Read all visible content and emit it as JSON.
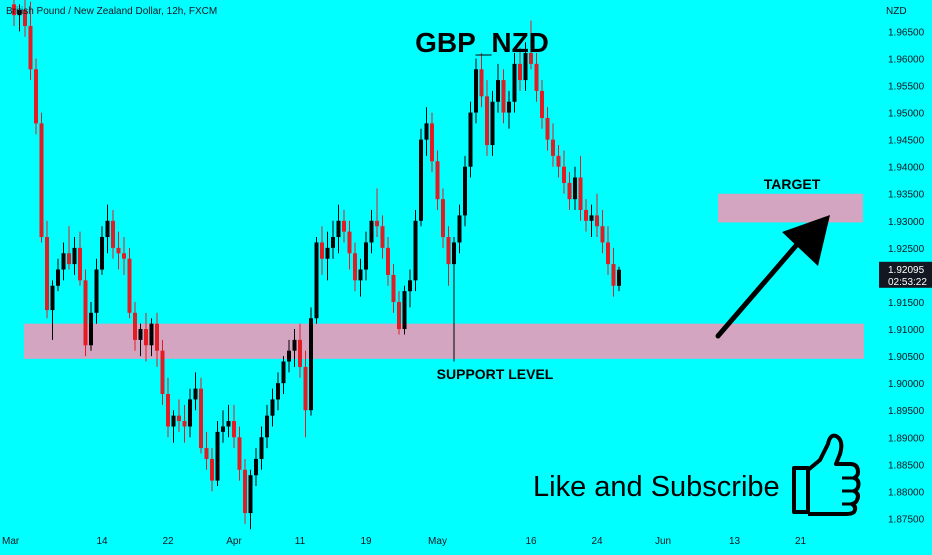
{
  "header": {
    "symbol_description": "British Pound / New Zealand Dollar, 12h, FXCM",
    "title": "GBP_NZD"
  },
  "price_scale": {
    "currency": "NZD",
    "ticks": [
      "1.96500",
      "1.96000",
      "1.95500",
      "1.95000",
      "1.94500",
      "1.94000",
      "1.93500",
      "1.93000",
      "1.92500",
      "1.92000",
      "1.91500",
      "1.91000",
      "1.90500",
      "1.90000",
      "1.89500",
      "1.89000",
      "1.88500",
      "1.88000",
      "1.87500"
    ],
    "last_price": "1.92095",
    "countdown": "02:53:22",
    "last_price_color": "#131722"
  },
  "time_scale": {
    "ticks": [
      {
        "label": "Mar",
        "candle": 0
      },
      {
        "label": "14",
        "candle": 16
      },
      {
        "label": "22",
        "candle": 28
      },
      {
        "label": "Apr",
        "candle": 40
      },
      {
        "label": "11",
        "candle": 52
      },
      {
        "label": "19",
        "candle": 64
      },
      {
        "label": "May",
        "candle": 77
      },
      {
        "label": "16",
        "candle": 94
      },
      {
        "label": "24",
        "candle": 106
      },
      {
        "label": "Jun",
        "candle": 118
      },
      {
        "label": "13",
        "candle": 131
      },
      {
        "label": "21",
        "candle": 143
      }
    ]
  },
  "annotations": {
    "target_label": "TARGET",
    "support_label": "SUPPORT LEVEL",
    "cta_text": "Like and Subscribe",
    "zone_color": "#d4a5c0",
    "arrow_color": "#000000",
    "cta_icon": "thumbs-up-icon"
  },
  "chart_data": {
    "type": "candlestick",
    "title": "GBP_NZD",
    "symbol": "British Pound / New Zealand Dollar, 12h, FXCM",
    "timeframe": "12h",
    "ylim": [
      1.8725,
      1.9708
    ],
    "y_unit": "NZD",
    "up_color": "#000000",
    "down_color": "#e31b23",
    "support_zone": [
      1.9045,
      1.911
    ],
    "target_zone": [
      1.9297,
      1.935
    ],
    "candles": [
      {
        "o": 1.97,
        "h": 1.9712,
        "l": 1.966,
        "c": 1.968
      },
      {
        "o": 1.968,
        "h": 1.97,
        "l": 1.965,
        "c": 1.969
      },
      {
        "o": 1.969,
        "h": 1.971,
        "l": 1.964,
        "c": 1.966
      },
      {
        "o": 1.966,
        "h": 1.9705,
        "l": 1.956,
        "c": 1.958
      },
      {
        "o": 1.958,
        "h": 1.96,
        "l": 1.946,
        "c": 1.948
      },
      {
        "o": 1.948,
        "h": 1.95,
        "l": 1.926,
        "c": 1.927
      },
      {
        "o": 1.927,
        "h": 1.93,
        "l": 1.912,
        "c": 1.9135
      },
      {
        "o": 1.9135,
        "h": 1.919,
        "l": 1.908,
        "c": 1.918
      },
      {
        "o": 1.918,
        "h": 1.923,
        "l": 1.917,
        "c": 1.921
      },
      {
        "o": 1.921,
        "h": 1.926,
        "l": 1.919,
        "c": 1.924
      },
      {
        "o": 1.924,
        "h": 1.929,
        "l": 1.921,
        "c": 1.922
      },
      {
        "o": 1.922,
        "h": 1.927,
        "l": 1.92,
        "c": 1.925
      },
      {
        "o": 1.925,
        "h": 1.928,
        "l": 1.918,
        "c": 1.919
      },
      {
        "o": 1.919,
        "h": 1.921,
        "l": 1.905,
        "c": 1.907
      },
      {
        "o": 1.907,
        "h": 1.915,
        "l": 1.906,
        "c": 1.913
      },
      {
        "o": 1.913,
        "h": 1.923,
        "l": 1.911,
        "c": 1.921
      },
      {
        "o": 1.921,
        "h": 1.929,
        "l": 1.92,
        "c": 1.927
      },
      {
        "o": 1.927,
        "h": 1.933,
        "l": 1.924,
        "c": 1.93
      },
      {
        "o": 1.93,
        "h": 1.932,
        "l": 1.923,
        "c": 1.925
      },
      {
        "o": 1.925,
        "h": 1.928,
        "l": 1.921,
        "c": 1.924
      },
      {
        "o": 1.924,
        "h": 1.927,
        "l": 1.92,
        "c": 1.923
      },
      {
        "o": 1.923,
        "h": 1.925,
        "l": 1.912,
        "c": 1.913
      },
      {
        "o": 1.913,
        "h": 1.915,
        "l": 1.906,
        "c": 1.908
      },
      {
        "o": 1.908,
        "h": 1.911,
        "l": 1.905,
        "c": 1.91
      },
      {
        "o": 1.91,
        "h": 1.913,
        "l": 1.904,
        "c": 1.907
      },
      {
        "o": 1.907,
        "h": 1.912,
        "l": 1.905,
        "c": 1.911
      },
      {
        "o": 1.911,
        "h": 1.913,
        "l": 1.903,
        "c": 1.906
      },
      {
        "o": 1.906,
        "h": 1.908,
        "l": 1.896,
        "c": 1.898
      },
      {
        "o": 1.898,
        "h": 1.901,
        "l": 1.89,
        "c": 1.892
      },
      {
        "o": 1.892,
        "h": 1.895,
        "l": 1.889,
        "c": 1.894
      },
      {
        "o": 1.894,
        "h": 1.897,
        "l": 1.891,
        "c": 1.893
      },
      {
        "o": 1.893,
        "h": 1.896,
        "l": 1.889,
        "c": 1.892
      },
      {
        "o": 1.892,
        "h": 1.899,
        "l": 1.89,
        "c": 1.897
      },
      {
        "o": 1.897,
        "h": 1.902,
        "l": 1.895,
        "c": 1.899
      },
      {
        "o": 1.899,
        "h": 1.901,
        "l": 1.887,
        "c": 1.888
      },
      {
        "o": 1.888,
        "h": 1.891,
        "l": 1.884,
        "c": 1.886
      },
      {
        "o": 1.886,
        "h": 1.888,
        "l": 1.88,
        "c": 1.882
      },
      {
        "o": 1.882,
        "h": 1.893,
        "l": 1.881,
        "c": 1.891
      },
      {
        "o": 1.891,
        "h": 1.895,
        "l": 1.889,
        "c": 1.892
      },
      {
        "o": 1.892,
        "h": 1.896,
        "l": 1.89,
        "c": 1.893
      },
      {
        "o": 1.893,
        "h": 1.896,
        "l": 1.888,
        "c": 1.89
      },
      {
        "o": 1.89,
        "h": 1.892,
        "l": 1.882,
        "c": 1.884
      },
      {
        "o": 1.884,
        "h": 1.886,
        "l": 1.874,
        "c": 1.876
      },
      {
        "o": 1.876,
        "h": 1.884,
        "l": 1.873,
        "c": 1.883
      },
      {
        "o": 1.883,
        "h": 1.888,
        "l": 1.881,
        "c": 1.886
      },
      {
        "o": 1.886,
        "h": 1.892,
        "l": 1.884,
        "c": 1.89
      },
      {
        "o": 1.89,
        "h": 1.896,
        "l": 1.888,
        "c": 1.894
      },
      {
        "o": 1.894,
        "h": 1.899,
        "l": 1.892,
        "c": 1.897
      },
      {
        "o": 1.897,
        "h": 1.902,
        "l": 1.895,
        "c": 1.9
      },
      {
        "o": 1.9,
        "h": 1.905,
        "l": 1.898,
        "c": 1.904
      },
      {
        "o": 1.904,
        "h": 1.908,
        "l": 1.902,
        "c": 1.906
      },
      {
        "o": 1.906,
        "h": 1.91,
        "l": 1.903,
        "c": 1.908
      },
      {
        "o": 1.908,
        "h": 1.911,
        "l": 1.901,
        "c": 1.903
      },
      {
        "o": 1.903,
        "h": 1.906,
        "l": 1.89,
        "c": 1.895
      },
      {
        "o": 1.895,
        "h": 1.914,
        "l": 1.894,
        "c": 1.912
      },
      {
        "o": 1.912,
        "h": 1.927,
        "l": 1.911,
        "c": 1.926
      },
      {
        "o": 1.926,
        "h": 1.929,
        "l": 1.92,
        "c": 1.923
      },
      {
        "o": 1.923,
        "h": 1.928,
        "l": 1.919,
        "c": 1.925
      },
      {
        "o": 1.925,
        "h": 1.93,
        "l": 1.923,
        "c": 1.927
      },
      {
        "o": 1.927,
        "h": 1.933,
        "l": 1.924,
        "c": 1.93
      },
      {
        "o": 1.93,
        "h": 1.932,
        "l": 1.926,
        "c": 1.928
      },
      {
        "o": 1.928,
        "h": 1.93,
        "l": 1.921,
        "c": 1.924
      },
      {
        "o": 1.924,
        "h": 1.926,
        "l": 1.917,
        "c": 1.919
      },
      {
        "o": 1.919,
        "h": 1.923,
        "l": 1.916,
        "c": 1.921
      },
      {
        "o": 1.921,
        "h": 1.928,
        "l": 1.919,
        "c": 1.926
      },
      {
        "o": 1.926,
        "h": 1.932,
        "l": 1.924,
        "c": 1.93
      },
      {
        "o": 1.93,
        "h": 1.936,
        "l": 1.927,
        "c": 1.929
      },
      {
        "o": 1.929,
        "h": 1.931,
        "l": 1.923,
        "c": 1.925
      },
      {
        "o": 1.925,
        "h": 1.927,
        "l": 1.918,
        "c": 1.92
      },
      {
        "o": 1.92,
        "h": 1.922,
        "l": 1.913,
        "c": 1.915
      },
      {
        "o": 1.915,
        "h": 1.917,
        "l": 1.909,
        "c": 1.91
      },
      {
        "o": 1.91,
        "h": 1.918,
        "l": 1.909,
        "c": 1.917
      },
      {
        "o": 1.917,
        "h": 1.921,
        "l": 1.914,
        "c": 1.919
      },
      {
        "o": 1.919,
        "h": 1.932,
        "l": 1.917,
        "c": 1.93
      },
      {
        "o": 1.93,
        "h": 1.947,
        "l": 1.929,
        "c": 1.945
      },
      {
        "o": 1.945,
        "h": 1.951,
        "l": 1.942,
        "c": 1.948
      },
      {
        "o": 1.948,
        "h": 1.95,
        "l": 1.939,
        "c": 1.941
      },
      {
        "o": 1.941,
        "h": 1.943,
        "l": 1.932,
        "c": 1.934
      },
      {
        "o": 1.934,
        "h": 1.936,
        "l": 1.925,
        "c": 1.927
      },
      {
        "o": 1.927,
        "h": 1.929,
        "l": 1.918,
        "c": 1.922
      },
      {
        "o": 1.922,
        "h": 1.927,
        "l": 1.904,
        "c": 1.926
      },
      {
        "o": 1.926,
        "h": 1.933,
        "l": 1.924,
        "c": 1.931
      },
      {
        "o": 1.931,
        "h": 1.942,
        "l": 1.929,
        "c": 1.94
      },
      {
        "o": 1.94,
        "h": 1.952,
        "l": 1.938,
        "c": 1.95
      },
      {
        "o": 1.95,
        "h": 1.96,
        "l": 1.948,
        "c": 1.958
      },
      {
        "o": 1.958,
        "h": 1.961,
        "l": 1.951,
        "c": 1.953
      },
      {
        "o": 1.953,
        "h": 1.956,
        "l": 1.942,
        "c": 1.944
      },
      {
        "o": 1.944,
        "h": 1.954,
        "l": 1.942,
        "c": 1.952
      },
      {
        "o": 1.952,
        "h": 1.959,
        "l": 1.95,
        "c": 1.956
      },
      {
        "o": 1.956,
        "h": 1.958,
        "l": 1.948,
        "c": 1.95
      },
      {
        "o": 1.95,
        "h": 1.954,
        "l": 1.947,
        "c": 1.952
      },
      {
        "o": 1.952,
        "h": 1.961,
        "l": 1.95,
        "c": 1.959
      },
      {
        "o": 1.959,
        "h": 1.962,
        "l": 1.954,
        "c": 1.956
      },
      {
        "o": 1.956,
        "h": 1.963,
        "l": 1.954,
        "c": 1.961
      },
      {
        "o": 1.961,
        "h": 1.967,
        "l": 1.958,
        "c": 1.959
      },
      {
        "o": 1.959,
        "h": 1.961,
        "l": 1.952,
        "c": 1.954
      },
      {
        "o": 1.954,
        "h": 1.956,
        "l": 1.947,
        "c": 1.949
      },
      {
        "o": 1.949,
        "h": 1.951,
        "l": 1.943,
        "c": 1.945
      },
      {
        "o": 1.945,
        "h": 1.948,
        "l": 1.94,
        "c": 1.942
      },
      {
        "o": 1.942,
        "h": 1.944,
        "l": 1.938,
        "c": 1.94
      },
      {
        "o": 1.94,
        "h": 1.943,
        "l": 1.935,
        "c": 1.937
      },
      {
        "o": 1.937,
        "h": 1.939,
        "l": 1.932,
        "c": 1.934
      },
      {
        "o": 1.934,
        "h": 1.94,
        "l": 1.932,
        "c": 1.938
      },
      {
        "o": 1.938,
        "h": 1.942,
        "l": 1.93,
        "c": 1.932
      },
      {
        "o": 1.932,
        "h": 1.934,
        "l": 1.928,
        "c": 1.93
      },
      {
        "o": 1.93,
        "h": 1.933,
        "l": 1.927,
        "c": 1.931
      },
      {
        "o": 1.931,
        "h": 1.935,
        "l": 1.927,
        "c": 1.929
      },
      {
        "o": 1.929,
        "h": 1.932,
        "l": 1.924,
        "c": 1.926
      },
      {
        "o": 1.926,
        "h": 1.929,
        "l": 1.92,
        "c": 1.922
      },
      {
        "o": 1.922,
        "h": 1.925,
        "l": 1.916,
        "c": 1.918
      },
      {
        "o": 1.918,
        "h": 1.9215,
        "l": 1.917,
        "c": 1.92095
      }
    ]
  }
}
